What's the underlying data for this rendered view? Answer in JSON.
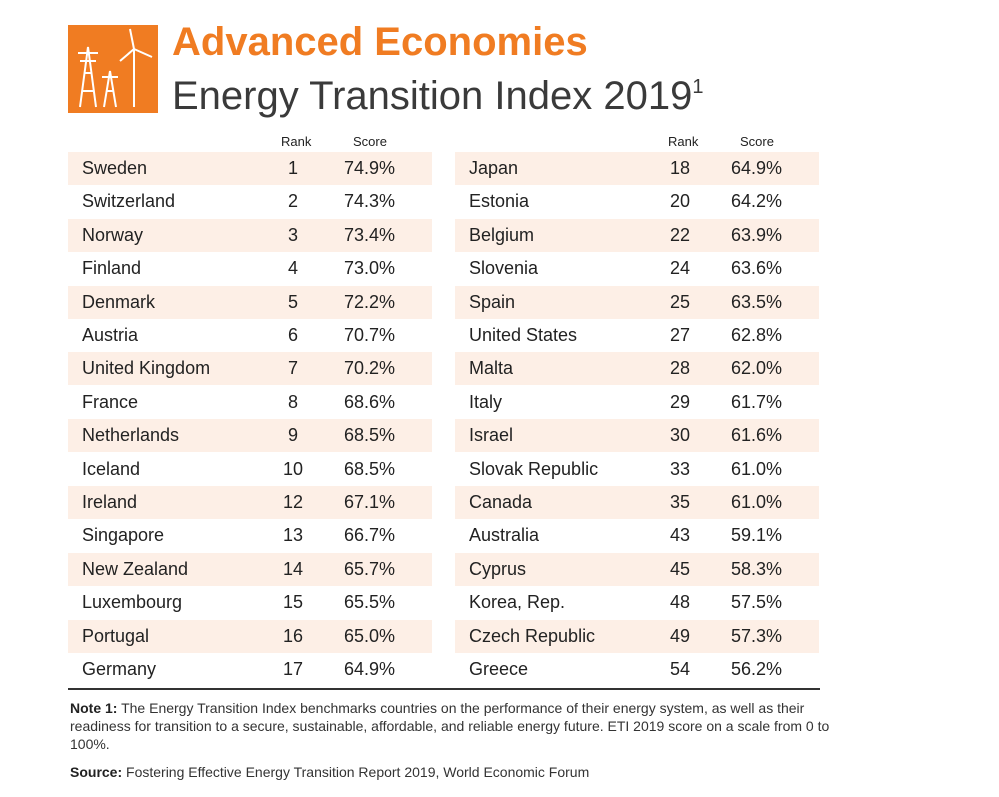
{
  "header": {
    "title": "Advanced Economies",
    "subtitle": "Energy Transition Index 2019",
    "superscript": "1"
  },
  "tables": [
    {
      "columns": [
        "Rank",
        "Score"
      ],
      "rows": [
        [
          "Sweden",
          1,
          "74.9%"
        ],
        [
          "Switzerland",
          2,
          "74.3%"
        ],
        [
          "Norway",
          3,
          "73.4%"
        ],
        [
          "Finland",
          4,
          "73.0%"
        ],
        [
          "Denmark",
          5,
          "72.2%"
        ],
        [
          "Austria",
          6,
          "70.7%"
        ],
        [
          "United Kingdom",
          7,
          "70.2%"
        ],
        [
          "France",
          8,
          "68.6%"
        ],
        [
          "Netherlands",
          9,
          "68.5%"
        ],
        [
          "Iceland",
          10,
          "68.5%"
        ],
        [
          "Ireland",
          12,
          "67.1%"
        ],
        [
          "Singapore",
          13,
          "66.7%"
        ],
        [
          "New Zealand",
          14,
          "65.7%"
        ],
        [
          "Luxembourg",
          15,
          "65.5%"
        ],
        [
          "Portugal",
          16,
          "65.0%"
        ],
        [
          "Germany",
          17,
          "64.9%"
        ]
      ]
    },
    {
      "columns": [
        "Rank",
        "Score"
      ],
      "rows": [
        [
          "Japan",
          18,
          "64.9%"
        ],
        [
          "Estonia",
          20,
          "64.2%"
        ],
        [
          "Belgium",
          22,
          "63.9%"
        ],
        [
          "Slovenia",
          24,
          "63.6%"
        ],
        [
          "Spain",
          25,
          "63.5%"
        ],
        [
          "United States",
          27,
          "62.8%"
        ],
        [
          "Malta",
          28,
          "62.0%"
        ],
        [
          "Italy",
          29,
          "61.7%"
        ],
        [
          "Israel",
          30,
          "61.6%"
        ],
        [
          "Slovak Republic",
          33,
          "61.0%"
        ],
        [
          "Canada",
          35,
          "61.0%"
        ],
        [
          "Australia",
          43,
          "59.1%"
        ],
        [
          "Cyprus",
          45,
          "58.3%"
        ],
        [
          "Korea, Rep.",
          48,
          "57.5%"
        ],
        [
          "Czech Republic",
          49,
          "57.3%"
        ],
        [
          "Greece",
          54,
          "56.2%"
        ]
      ]
    }
  ],
  "note": {
    "label": "Note 1:",
    "text": "The Energy Transition Index benchmarks countries on the performance of their energy system, as well as their readiness for transition to a secure, sustainable, affordable, and reliable energy future. ETI 2019 score on a scale from 0 to 100%."
  },
  "source": {
    "label": "Source:",
    "text": "Fostering Effective Energy Transition Report 2019, World Economic Forum"
  }
}
